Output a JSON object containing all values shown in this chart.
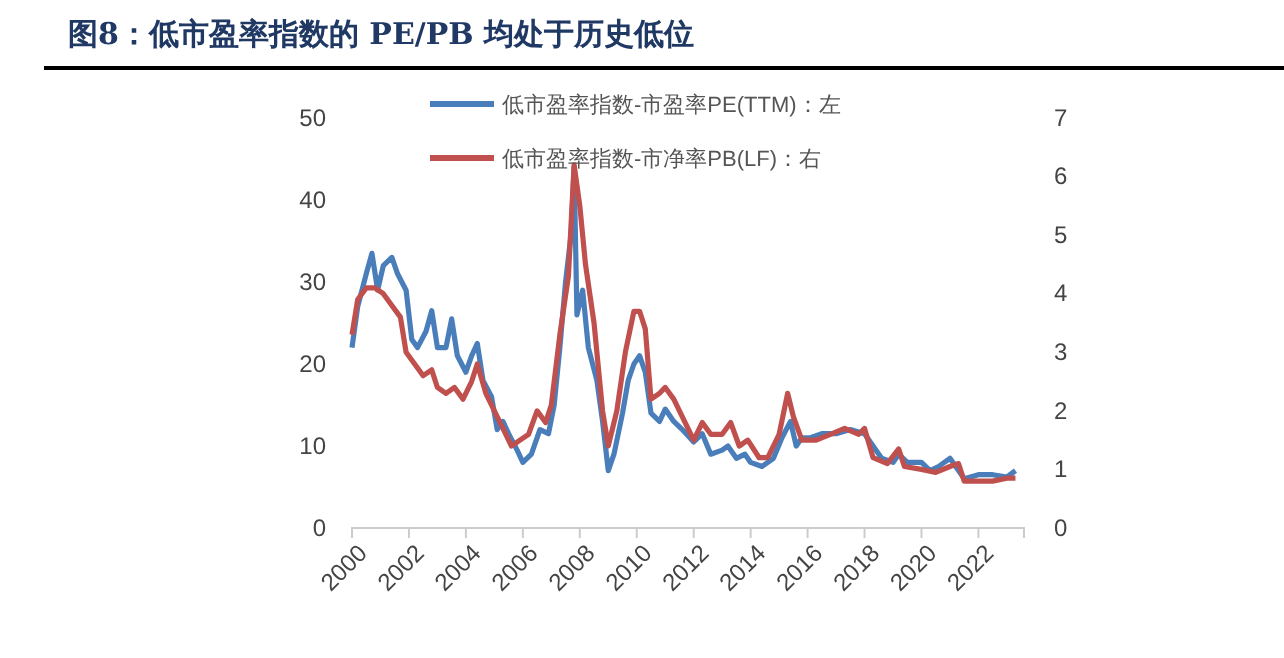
{
  "chart_data": {
    "type": "line",
    "title": "图8：低市盈率指数的 PE/PB 均处于历史低位",
    "xlim": [
      2000,
      2023.6
    ],
    "xticks": [
      2000,
      2002,
      2004,
      2006,
      2008,
      2010,
      2012,
      2014,
      2016,
      2018,
      2020,
      2022
    ],
    "ylim": [
      0,
      50
    ],
    "yticks": [
      0,
      10,
      20,
      30,
      40,
      50
    ],
    "y2lim": [
      0,
      7
    ],
    "y2ticks": [
      0,
      1,
      2,
      3,
      4,
      5,
      6,
      7
    ],
    "legend": "top",
    "grid": false,
    "line_style": "solid",
    "marker": "none",
    "series": [
      {
        "name": "低市盈率指数-市盈率PE(TTM)：左",
        "color": "#4a7ebb",
        "x": [
          2000,
          2000.2,
          2000.5,
          2000.7,
          2000.9,
          2001.1,
          2001.4,
          2001.6,
          2001.9,
          2002.1,
          2002.3,
          2002.6,
          2002.8,
          2003.0,
          2003.3,
          2003.5,
          2003.7,
          2004.0,
          2004.2,
          2004.4,
          2004.6,
          2004.9,
          2005.1,
          2005.3,
          2005.5,
          2005.8,
          2006.0,
          2006.3,
          2006.6,
          2006.9,
          2007.1,
          2007.3,
          2007.5,
          2007.7,
          2007.8,
          2007.9,
          2008.1,
          2008.3,
          2008.6,
          2008.8,
          2009.0,
          2009.2,
          2009.5,
          2009.7,
          2009.9,
          2010.1,
          2010.3,
          2010.5,
          2010.8,
          2011.0,
          2011.3,
          2011.6,
          2012.0,
          2012.3,
          2012.6,
          2013.0,
          2013.2,
          2013.5,
          2013.8,
          2014.0,
          2014.4,
          2014.8,
          2015.1,
          2015.4,
          2015.6,
          2015.8,
          2016.1,
          2016.5,
          2017.0,
          2017.5,
          2018.0,
          2018.3,
          2018.6,
          2019.0,
          2019.2,
          2019.5,
          2020.0,
          2020.3,
          2020.6,
          2021.0,
          2021.3,
          2021.5,
          2022.0,
          2022.5,
          2023.0,
          2023.3
        ],
        "values": [
          22,
          27,
          31,
          33.5,
          29,
          32,
          33,
          31,
          29,
          23,
          22,
          24,
          26.5,
          22,
          22,
          25.5,
          21,
          19,
          21,
          22.5,
          18,
          16,
          12,
          13,
          11.5,
          9.5,
          8,
          9,
          12,
          11.5,
          15,
          22,
          30,
          36,
          44,
          26,
          29,
          22,
          18,
          13,
          7,
          9,
          14,
          18,
          20,
          21,
          19,
          14,
          13,
          14.5,
          13,
          12,
          10.5,
          11.5,
          9,
          9.5,
          10,
          8.5,
          9,
          8,
          7.5,
          8.5,
          11,
          13,
          10,
          11,
          11,
          11.5,
          11.5,
          12,
          11.5,
          10,
          8.5,
          8,
          9,
          8,
          8,
          7,
          7.5,
          8.5,
          7,
          6,
          6.5,
          6.5,
          6.2,
          7
        ]
      },
      {
        "name": "低市盈率指数-市净率PB(LF)：右",
        "color": "#c0504d",
        "axis": "y2",
        "x": [
          2000,
          2000.2,
          2000.5,
          2000.8,
          2001.1,
          2001.4,
          2001.7,
          2001.9,
          2002.2,
          2002.5,
          2002.8,
          2003.0,
          2003.3,
          2003.6,
          2003.9,
          2004.2,
          2004.4,
          2004.7,
          2005.0,
          2005.3,
          2005.6,
          2005.9,
          2006.2,
          2006.5,
          2006.8,
          2007.0,
          2007.3,
          2007.6,
          2007.8,
          2008.0,
          2008.2,
          2008.5,
          2008.8,
          2009.0,
          2009.3,
          2009.6,
          2009.9,
          2010.1,
          2010.3,
          2010.5,
          2010.8,
          2011.0,
          2011.3,
          2011.7,
          2012.0,
          2012.3,
          2012.6,
          2013.0,
          2013.3,
          2013.6,
          2013.9,
          2014.3,
          2014.6,
          2015.0,
          2015.3,
          2015.5,
          2015.8,
          2016.3,
          2016.8,
          2017.3,
          2017.8,
          2018.0,
          2018.3,
          2018.8,
          2019.2,
          2019.4,
          2020.0,
          2020.5,
          2021.0,
          2021.3,
          2021.5,
          2022.0,
          2022.5,
          2023.0,
          2023.3
        ],
        "values": [
          3.3,
          3.9,
          4.1,
          4.1,
          4.0,
          3.8,
          3.6,
          3.0,
          2.8,
          2.6,
          2.7,
          2.4,
          2.3,
          2.4,
          2.2,
          2.5,
          2.8,
          2.3,
          2.0,
          1.7,
          1.4,
          1.5,
          1.6,
          2.0,
          1.8,
          2.1,
          3.3,
          4.3,
          6.2,
          5.5,
          4.5,
          3.5,
          2.0,
          1.4,
          2.0,
          3.0,
          3.7,
          3.7,
          3.4,
          2.2,
          2.3,
          2.4,
          2.2,
          1.8,
          1.5,
          1.8,
          1.6,
          1.6,
          1.8,
          1.4,
          1.5,
          1.2,
          1.2,
          1.6,
          2.3,
          1.9,
          1.5,
          1.5,
          1.6,
          1.7,
          1.6,
          1.7,
          1.2,
          1.1,
          1.35,
          1.05,
          1.0,
          0.95,
          1.05,
          1.1,
          0.8,
          0.8,
          0.8,
          0.85,
          0.85
        ]
      }
    ]
  }
}
